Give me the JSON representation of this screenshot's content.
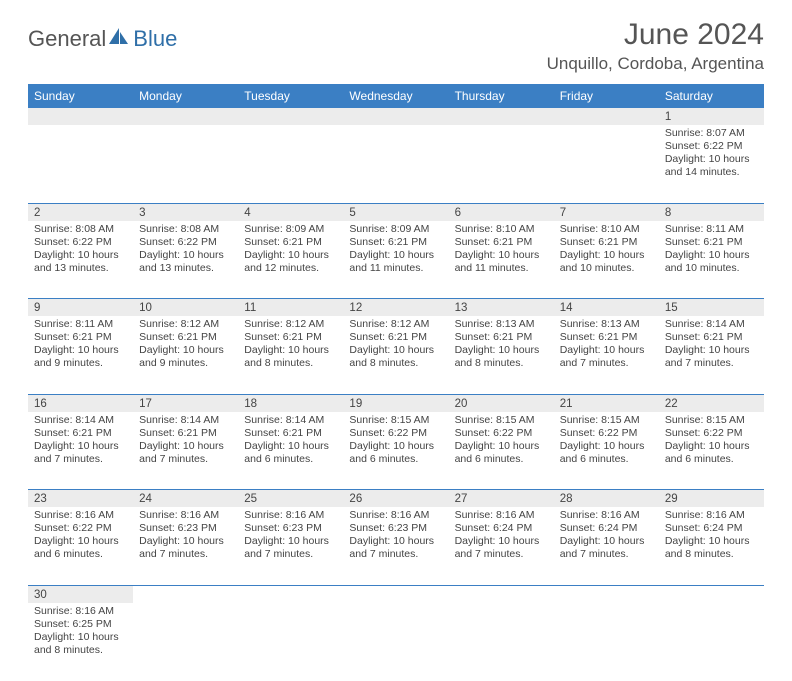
{
  "brand": {
    "general": "General",
    "blue": "Blue"
  },
  "title": "June 2024",
  "location": "Unquillo, Cordoba, Argentina",
  "colors": {
    "header_bg": "#3b7fc4",
    "header_text": "#ffffff",
    "daynum_bg": "#ececec",
    "text": "#444444",
    "brand_blue": "#2f6fa8",
    "brand_gray": "#555555"
  },
  "weekdays": [
    "Sunday",
    "Monday",
    "Tuesday",
    "Wednesday",
    "Thursday",
    "Friday",
    "Saturday"
  ],
  "weeks": [
    [
      null,
      null,
      null,
      null,
      null,
      null,
      {
        "n": "1",
        "sunrise": "8:07 AM",
        "sunset": "6:22 PM",
        "daylight": "10 hours and 14 minutes."
      }
    ],
    [
      {
        "n": "2",
        "sunrise": "8:08 AM",
        "sunset": "6:22 PM",
        "daylight": "10 hours and 13 minutes."
      },
      {
        "n": "3",
        "sunrise": "8:08 AM",
        "sunset": "6:22 PM",
        "daylight": "10 hours and 13 minutes."
      },
      {
        "n": "4",
        "sunrise": "8:09 AM",
        "sunset": "6:21 PM",
        "daylight": "10 hours and 12 minutes."
      },
      {
        "n": "5",
        "sunrise": "8:09 AM",
        "sunset": "6:21 PM",
        "daylight": "10 hours and 11 minutes."
      },
      {
        "n": "6",
        "sunrise": "8:10 AM",
        "sunset": "6:21 PM",
        "daylight": "10 hours and 11 minutes."
      },
      {
        "n": "7",
        "sunrise": "8:10 AM",
        "sunset": "6:21 PM",
        "daylight": "10 hours and 10 minutes."
      },
      {
        "n": "8",
        "sunrise": "8:11 AM",
        "sunset": "6:21 PM",
        "daylight": "10 hours and 10 minutes."
      }
    ],
    [
      {
        "n": "9",
        "sunrise": "8:11 AM",
        "sunset": "6:21 PM",
        "daylight": "10 hours and 9 minutes."
      },
      {
        "n": "10",
        "sunrise": "8:12 AM",
        "sunset": "6:21 PM",
        "daylight": "10 hours and 9 minutes."
      },
      {
        "n": "11",
        "sunrise": "8:12 AM",
        "sunset": "6:21 PM",
        "daylight": "10 hours and 8 minutes."
      },
      {
        "n": "12",
        "sunrise": "8:12 AM",
        "sunset": "6:21 PM",
        "daylight": "10 hours and 8 minutes."
      },
      {
        "n": "13",
        "sunrise": "8:13 AM",
        "sunset": "6:21 PM",
        "daylight": "10 hours and 8 minutes."
      },
      {
        "n": "14",
        "sunrise": "8:13 AM",
        "sunset": "6:21 PM",
        "daylight": "10 hours and 7 minutes."
      },
      {
        "n": "15",
        "sunrise": "8:14 AM",
        "sunset": "6:21 PM",
        "daylight": "10 hours and 7 minutes."
      }
    ],
    [
      {
        "n": "16",
        "sunrise": "8:14 AM",
        "sunset": "6:21 PM",
        "daylight": "10 hours and 7 minutes."
      },
      {
        "n": "17",
        "sunrise": "8:14 AM",
        "sunset": "6:21 PM",
        "daylight": "10 hours and 7 minutes."
      },
      {
        "n": "18",
        "sunrise": "8:14 AM",
        "sunset": "6:21 PM",
        "daylight": "10 hours and 6 minutes."
      },
      {
        "n": "19",
        "sunrise": "8:15 AM",
        "sunset": "6:22 PM",
        "daylight": "10 hours and 6 minutes."
      },
      {
        "n": "20",
        "sunrise": "8:15 AM",
        "sunset": "6:22 PM",
        "daylight": "10 hours and 6 minutes."
      },
      {
        "n": "21",
        "sunrise": "8:15 AM",
        "sunset": "6:22 PM",
        "daylight": "10 hours and 6 minutes."
      },
      {
        "n": "22",
        "sunrise": "8:15 AM",
        "sunset": "6:22 PM",
        "daylight": "10 hours and 6 minutes."
      }
    ],
    [
      {
        "n": "23",
        "sunrise": "8:16 AM",
        "sunset": "6:22 PM",
        "daylight": "10 hours and 6 minutes."
      },
      {
        "n": "24",
        "sunrise": "8:16 AM",
        "sunset": "6:23 PM",
        "daylight": "10 hours and 7 minutes."
      },
      {
        "n": "25",
        "sunrise": "8:16 AM",
        "sunset": "6:23 PM",
        "daylight": "10 hours and 7 minutes."
      },
      {
        "n": "26",
        "sunrise": "8:16 AM",
        "sunset": "6:23 PM",
        "daylight": "10 hours and 7 minutes."
      },
      {
        "n": "27",
        "sunrise": "8:16 AM",
        "sunset": "6:24 PM",
        "daylight": "10 hours and 7 minutes."
      },
      {
        "n": "28",
        "sunrise": "8:16 AM",
        "sunset": "6:24 PM",
        "daylight": "10 hours and 7 minutes."
      },
      {
        "n": "29",
        "sunrise": "8:16 AM",
        "sunset": "6:24 PM",
        "daylight": "10 hours and 8 minutes."
      }
    ],
    [
      {
        "n": "30",
        "sunrise": "8:16 AM",
        "sunset": "6:25 PM",
        "daylight": "10 hours and 8 minutes."
      },
      null,
      null,
      null,
      null,
      null,
      null
    ]
  ],
  "labels": {
    "sunrise": "Sunrise:",
    "sunset": "Sunset:",
    "daylight": "Daylight:"
  }
}
